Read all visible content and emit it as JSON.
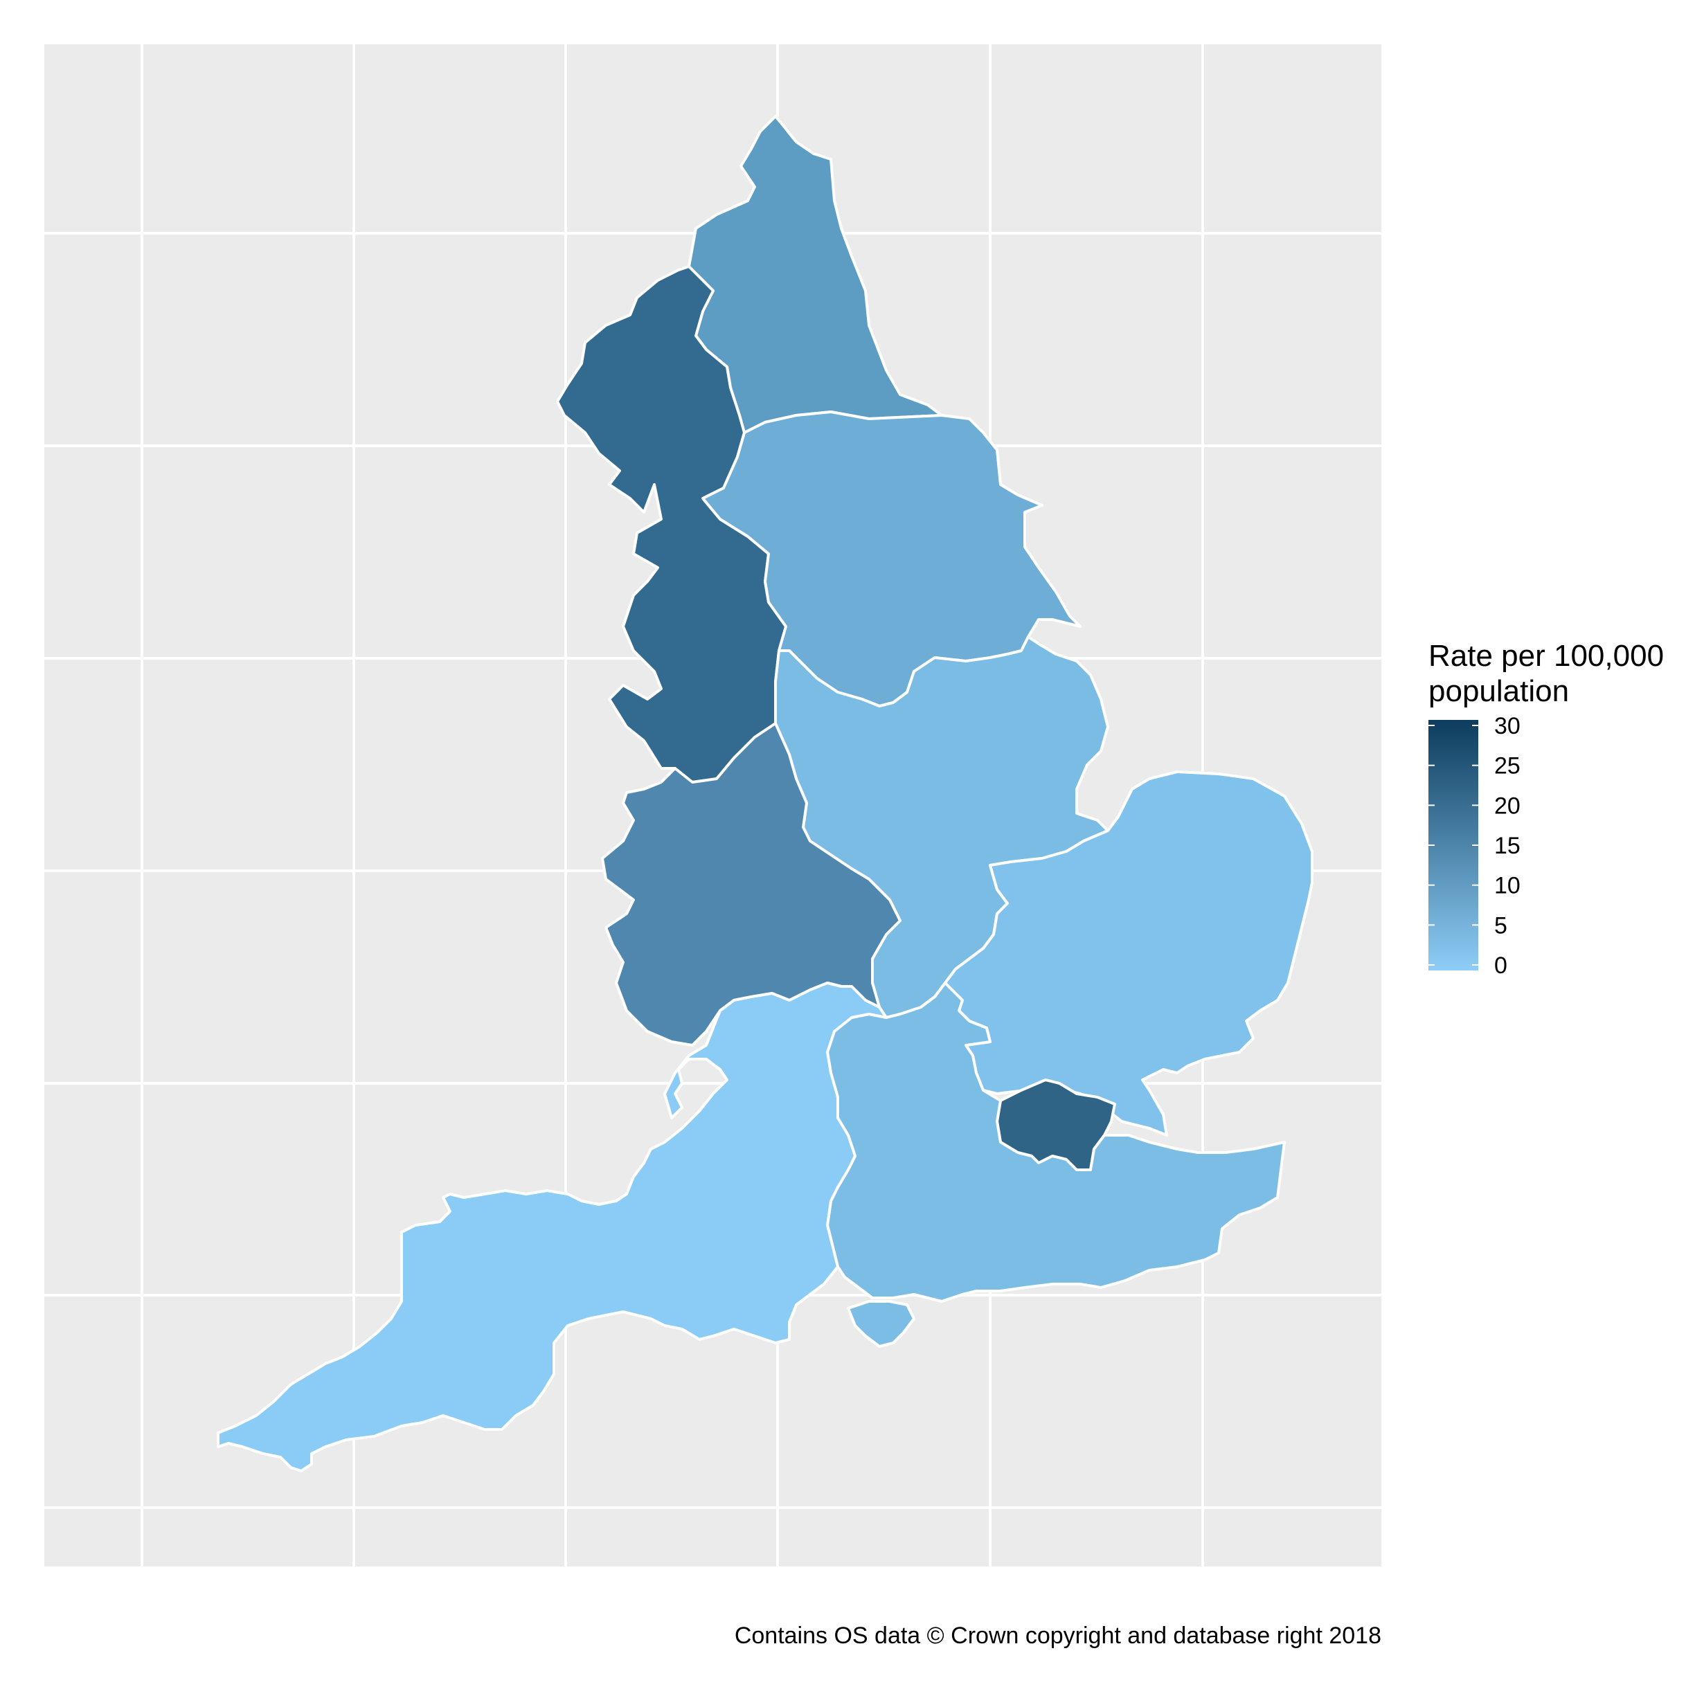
{
  "legend": {
    "title_line1": "Rate per 100,000",
    "title_line2": "population",
    "min": 0,
    "max": 30,
    "color_low": "#8ecdf6",
    "color_high": "#0d3c5d",
    "ticks": [
      "30",
      "25",
      "20",
      "15",
      "10",
      "5",
      "0"
    ]
  },
  "caption": "Contains OS data © Crown copyright and database right 2018",
  "colors": {
    "panel_background": "#ebebeb",
    "grid": "#ffffff",
    "border": "#ffffff"
  },
  "regions": [
    {
      "name": "North East",
      "value": 11,
      "color": "#5d9cc3"
    },
    {
      "name": "North West",
      "value": 20,
      "color": "#336a8f"
    },
    {
      "name": "Yorkshire and The Humber",
      "value": 8,
      "color": "#6eaed6"
    },
    {
      "name": "East Midlands",
      "value": 5,
      "color": "#7bbce4"
    },
    {
      "name": "West Midlands",
      "value": 14,
      "color": "#4f87ae"
    },
    {
      "name": "East of England",
      "value": 4,
      "color": "#80c2eb"
    },
    {
      "name": "London",
      "value": 21,
      "color": "#2f6486"
    },
    {
      "name": "South East",
      "value": 5,
      "color": "#7cbde6"
    },
    {
      "name": "South West",
      "value": 1,
      "color": "#8accf5"
    }
  ]
}
